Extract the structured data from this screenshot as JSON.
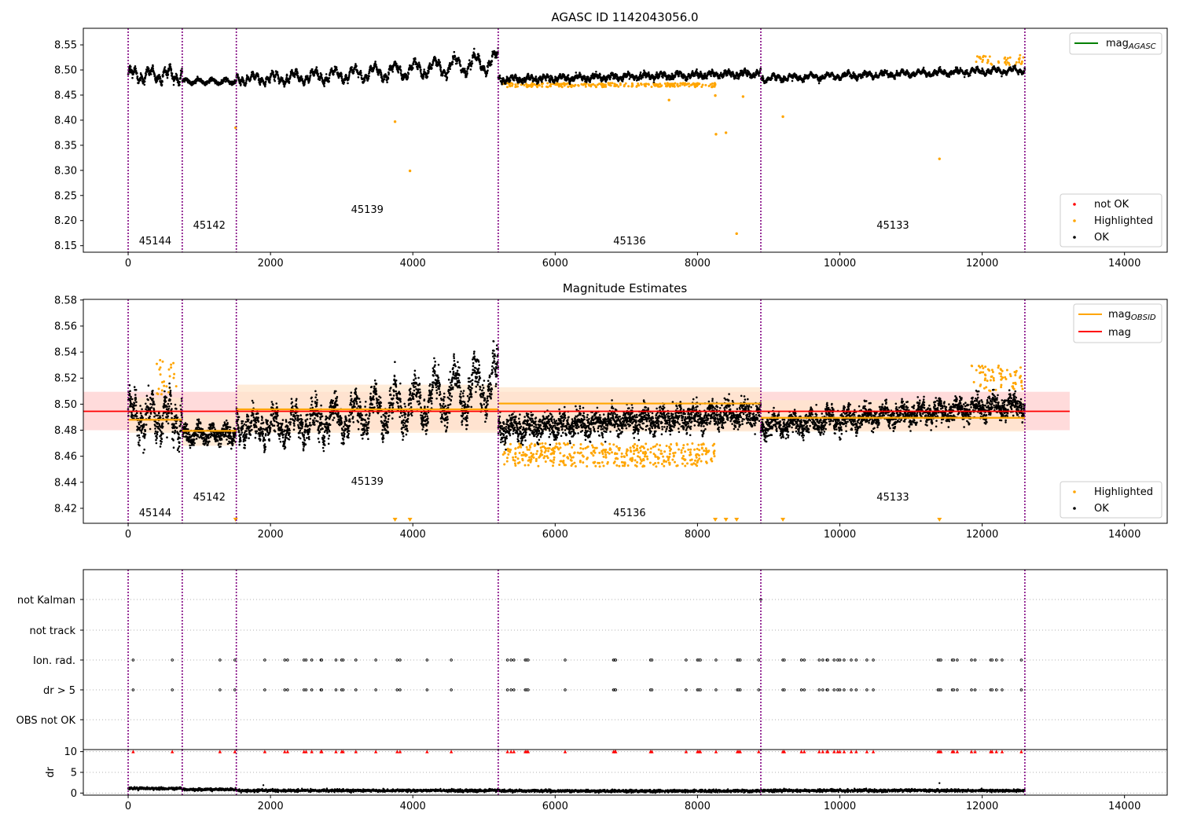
{
  "chart_data": [
    {
      "id": "top",
      "type": "scatter",
      "title": "AGASC ID 1142043056.0",
      "xlim": [
        -630,
        14600
      ],
      "ylim": [
        8.137,
        8.583
      ],
      "x_ticks": [
        0,
        2000,
        4000,
        6000,
        8000,
        10000,
        12000,
        14000
      ],
      "y_ticks": [
        8.15,
        8.2,
        8.25,
        8.3,
        8.35,
        8.4,
        8.45,
        8.5,
        8.55
      ],
      "obs_boundaries": [
        0,
        760,
        1520,
        5200,
        8890,
        12600
      ],
      "obsid_labels": [
        {
          "text": "45144",
          "x": 380,
          "y": 8.153
        },
        {
          "text": "45142",
          "x": 1140,
          "y": 8.184
        },
        {
          "text": "45139",
          "x": 3360,
          "y": 8.215
        },
        {
          "text": "45136",
          "x": 7045,
          "y": 8.153
        },
        {
          "text": "45133",
          "x": 10745,
          "y": 8.184
        }
      ],
      "legend_lines": [
        {
          "label": "mag",
          "sub": "AGASC",
          "color": "#008000"
        }
      ],
      "legend_points": [
        {
          "label": "not OK",
          "color": "#ff0000"
        },
        {
          "label": "Highlighted",
          "color": "#ffa500"
        },
        {
          "label": "OK",
          "color": "#000000"
        }
      ],
      "outliers": [
        [
          1510,
          8.385
        ],
        [
          3750,
          8.397
        ],
        [
          3960,
          8.299
        ],
        [
          7600,
          8.44
        ],
        [
          8250,
          8.449
        ],
        [
          8260,
          8.372
        ],
        [
          8400,
          8.375
        ],
        [
          8550,
          8.174
        ],
        [
          8640,
          8.447
        ],
        [
          9200,
          8.407
        ],
        [
          11400,
          8.323
        ]
      ]
    },
    {
      "id": "middle",
      "type": "scatter",
      "title": "Magnitude Estimates",
      "xlim": [
        -630,
        14600
      ],
      "ylim": [
        8.4085,
        8.5805
      ],
      "x_ticks": [
        0,
        2000,
        4000,
        6000,
        8000,
        10000,
        12000,
        14000
      ],
      "y_ticks": [
        8.42,
        8.44,
        8.46,
        8.48,
        8.5,
        8.52,
        8.54,
        8.56,
        8.58
      ],
      "obs_boundaries": [
        0,
        760,
        1520,
        5200,
        8890,
        12600
      ],
      "obsid_labels": [
        {
          "text": "45144",
          "x": 380,
          "y": 8.414
        },
        {
          "text": "45142",
          "x": 1140,
          "y": 8.426
        },
        {
          "text": "45139",
          "x": 3360,
          "y": 8.438
        },
        {
          "text": "45136",
          "x": 7045,
          "y": 8.414
        },
        {
          "text": "45133",
          "x": 10745,
          "y": 8.426
        }
      ],
      "mag_line": {
        "value": 8.4945,
        "xrange": [
          -630,
          13230
        ],
        "band": [
          8.48,
          8.5095
        ]
      },
      "obsid_mags": [
        {
          "x0": 0,
          "x1": 760,
          "mag": 8.488,
          "band": [
            8.478,
            8.505
          ]
        },
        {
          "x0": 760,
          "x1": 1520,
          "mag": 8.4795,
          "band": [
            8.468,
            8.492
          ]
        },
        {
          "x0": 1520,
          "x1": 5200,
          "mag": 8.496,
          "band": [
            8.478,
            8.515
          ]
        },
        {
          "x0": 5200,
          "x1": 8890,
          "mag": 8.5005,
          "band": [
            8.479,
            8.513
          ]
        },
        {
          "x0": 8890,
          "x1": 12600,
          "mag": 8.4895,
          "band": [
            8.479,
            8.503
          ]
        }
      ],
      "legend_lines": [
        {
          "label": "mag",
          "sub": "OBSID",
          "color": "#ffa500"
        },
        {
          "label": "mag",
          "sub": "",
          "color": "#ff0000"
        }
      ],
      "legend_points": [
        {
          "label": "Highlighted",
          "color": "#ffa500"
        },
        {
          "label": "OK",
          "color": "#000000"
        }
      ],
      "offscale_markers": [
        1510,
        3750,
        3960,
        8250,
        8400,
        8550,
        9200,
        11400
      ]
    },
    {
      "id": "flags",
      "type": "scatter",
      "xlim": [
        -630,
        14600
      ],
      "categories": [
        "not Kalman",
        "not track",
        "Ion. rad.",
        "dr > 5",
        "OBS not OK"
      ],
      "obs_boundaries": [
        0,
        760,
        1520,
        5200,
        8890,
        12600
      ],
      "flag_times": [
        70,
        620,
        1290,
        1500,
        1920,
        2200,
        2240,
        2470,
        2500,
        2580,
        2710,
        2720,
        2920,
        3000,
        3020,
        3200,
        3480,
        3780,
        3820,
        4200,
        4540,
        5330,
        5380,
        5420,
        5580,
        5600,
        5620,
        6140,
        6820,
        6840,
        6850,
        7340,
        7360,
        7840,
        8000,
        8020,
        8040,
        8260,
        8560,
        8580,
        8600,
        8860,
        9200,
        9220,
        9460,
        9500,
        9710,
        9760,
        9820,
        9830,
        9920,
        9970,
        10000,
        10060,
        10160,
        10230,
        10380,
        10470,
        11380,
        11400,
        11420,
        11580,
        11600,
        11650,
        11850,
        11900,
        12120,
        12140,
        12200,
        12280,
        12550
      ]
    },
    {
      "id": "dr",
      "type": "scatter",
      "ylabel": "dr",
      "xlim": [
        -630,
        14600
      ],
      "ylim": [
        -0.5,
        10.5
      ],
      "x_ticks": [
        0,
        2000,
        4000,
        6000,
        8000,
        10000,
        12000,
        14000
      ],
      "y_ticks": [
        0,
        5,
        10
      ],
      "obs_boundaries": [
        0,
        760,
        1520,
        5200,
        8890,
        12600
      ],
      "outliers": [
        [
          11400,
          2.4
        ],
        [
          1900,
          1.9
        ]
      ]
    }
  ],
  "colors": {
    "ok": "#000000",
    "highlighted": "#ffa500",
    "not_ok": "#ff0000",
    "boundary": "#800080",
    "mag_band": "#ffcccc",
    "obsid_band": "#ffe5cc",
    "grid": "#b0b0b0"
  }
}
